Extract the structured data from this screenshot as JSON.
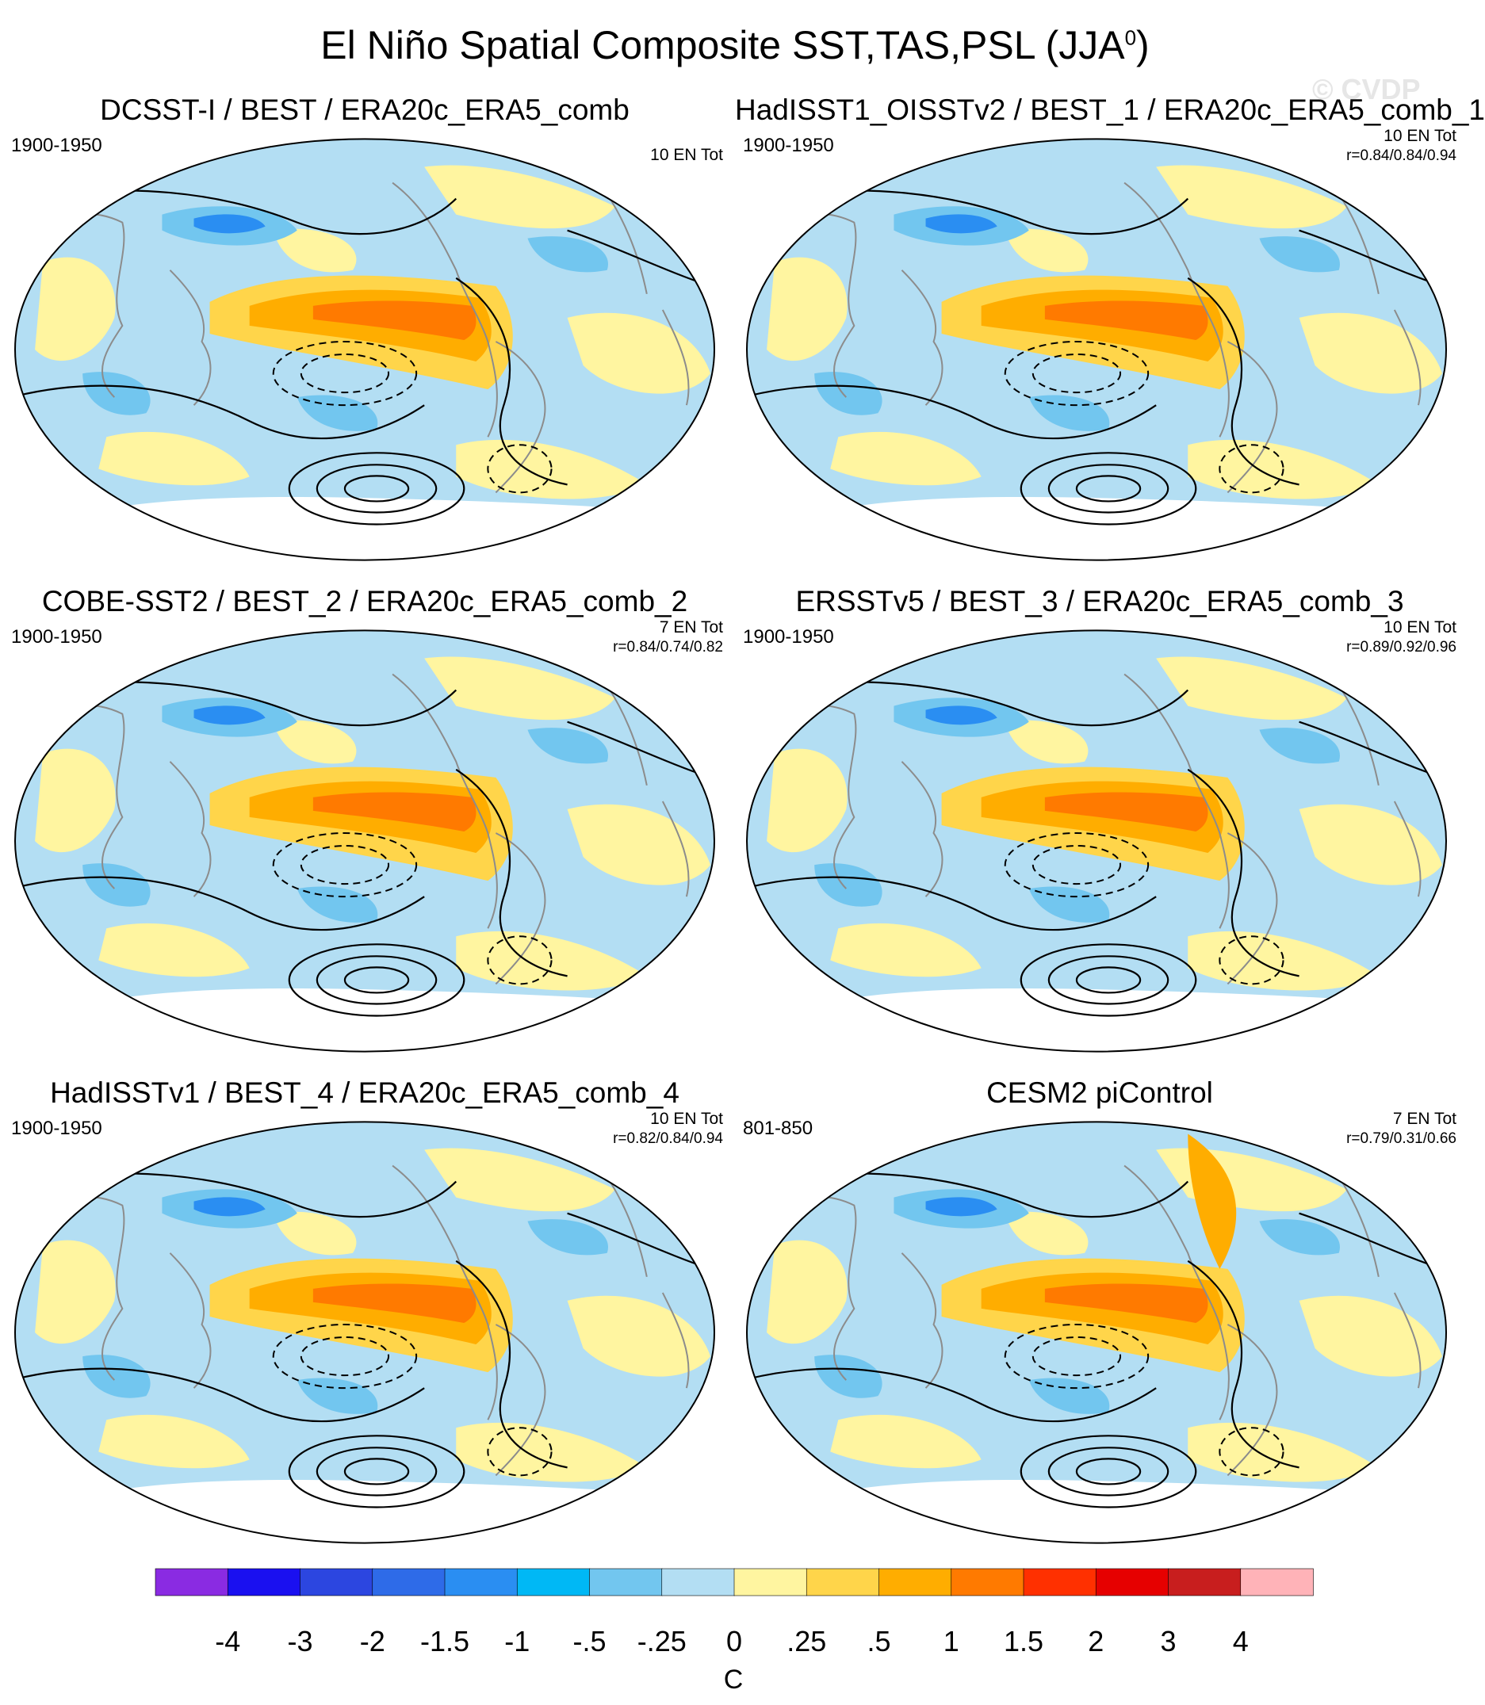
{
  "title": "El Niño Spatial Composite SST,TAS,PSL (JJA",
  "title_sup": "0",
  "watermark": "© CVDP",
  "panels": [
    {
      "title": "DCSST-I / BEST / ERA20c_ERA5_comb",
      "period": "1900-1950",
      "count": "10 EN Tot",
      "corr": "",
      "map_style": 1
    },
    {
      "title": "HadISST1_OISSTv2 / BEST_1 / ERA20c_ERA5_comb_1",
      "period": "1900-1950",
      "count": "10 EN Tot",
      "corr": "r=0.84/0.84/0.94",
      "map_style": 2
    },
    {
      "title": "COBE-SST2 / BEST_2 / ERA20c_ERA5_comb_2",
      "period": "1900-1950",
      "count": "7 EN Tot",
      "corr": "r=0.84/0.74/0.82",
      "map_style": 1
    },
    {
      "title": "ERSSTv5 / BEST_3 / ERA20c_ERA5_comb_3",
      "period": "1900-1950",
      "count": "10 EN Tot",
      "corr": "r=0.89/0.92/0.96",
      "map_style": 2
    },
    {
      "title": "HadISSTv1 / BEST_4 / ERA20c_ERA5_comb_4",
      "period": "1900-1950",
      "count": "10 EN Tot",
      "corr": "r=0.82/0.84/0.94",
      "map_style": 1
    },
    {
      "title": "CESM2 piControl",
      "period": "801-850",
      "count": "7 EN Tot",
      "corr": "r=0.79/0.31/0.66",
      "map_style": 3
    }
  ],
  "colorbar": {
    "colors": [
      "#8a2be2",
      "#1a10f0",
      "#2c46e0",
      "#2e6be8",
      "#2a8ef2",
      "#00b8f5",
      "#72c6ef",
      "#b3def3",
      "#fff5a0",
      "#ffd54a",
      "#ffad00",
      "#ff7a00",
      "#ff3000",
      "#e60000",
      "#c81e1e",
      "#ffb3b8"
    ],
    "labels": [
      "-4",
      "-3",
      "-2",
      "-1.5",
      "-1",
      "-.5",
      "-.25",
      "0",
      ".25",
      ".5",
      "1",
      "1.5",
      "2",
      "3",
      "4"
    ],
    "unit": "C"
  },
  "palette": {
    "ocean_cold": "#b3def3",
    "ocean_warm": "#fff5a0",
    "cool": "#72c6ef",
    "cold": "#2a8ef2",
    "warm": "#ffd54a",
    "hot": "#ffad00",
    "hotter": "#ff7a00",
    "land_ice": "#ffffff"
  }
}
